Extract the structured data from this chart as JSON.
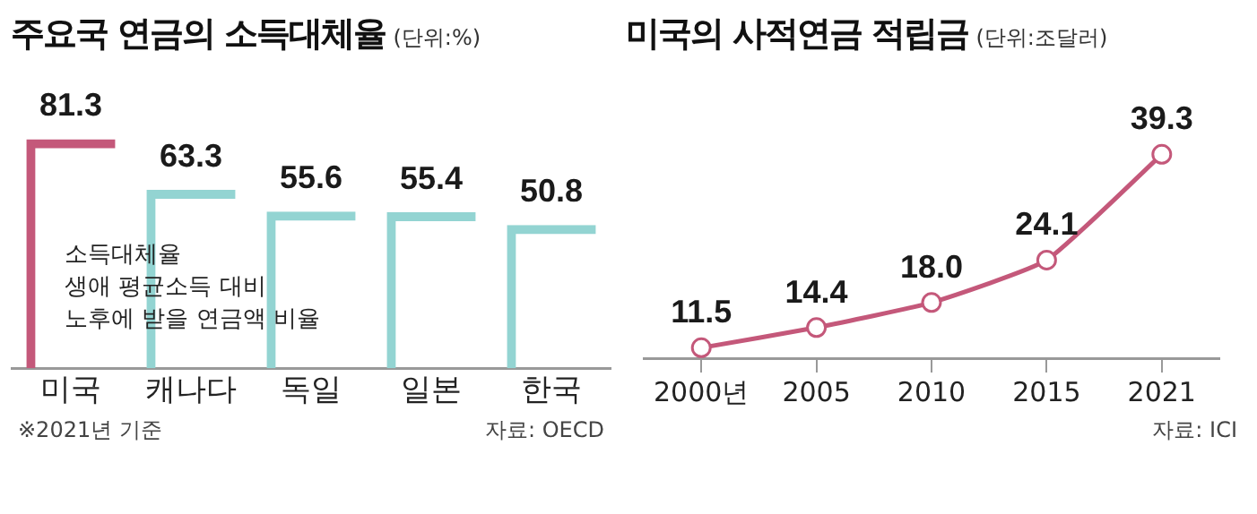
{
  "chart_data": [
    {
      "type": "bar",
      "title": "주요국 연금의 소득대체율",
      "subtitle": "(단위:%)",
      "categories": [
        "미국",
        "캐나다",
        "독일",
        "일본",
        "한국"
      ],
      "values": [
        81.3,
        63.3,
        55.6,
        55.4,
        50.8
      ],
      "colors": [
        "#c4587a",
        "#93d4d2",
        "#93d4d2",
        "#93d4d2",
        "#93d4d2"
      ],
      "data_labels": true,
      "annotations": [
        "소득대체율\n생애 평균소득 대비\n노후에 받을 연금액 비율",
        "※2021년 기준",
        "자료: OECD"
      ]
    },
    {
      "type": "line",
      "title": "미국의 사적연금 적립금",
      "subtitle": "(단위:조달러)",
      "categories": [
        "2000년",
        "2005",
        "2010",
        "2015",
        "2021"
      ],
      "values": [
        11.5,
        14.4,
        18.0,
        24.1,
        39.3
      ],
      "value_labels": [
        "11.5",
        "14.4",
        "18.0",
        "24.1",
        "39.3"
      ],
      "color": "#c4587a",
      "marker": "circle",
      "annotations": [
        "자료: ICI"
      ]
    }
  ]
}
